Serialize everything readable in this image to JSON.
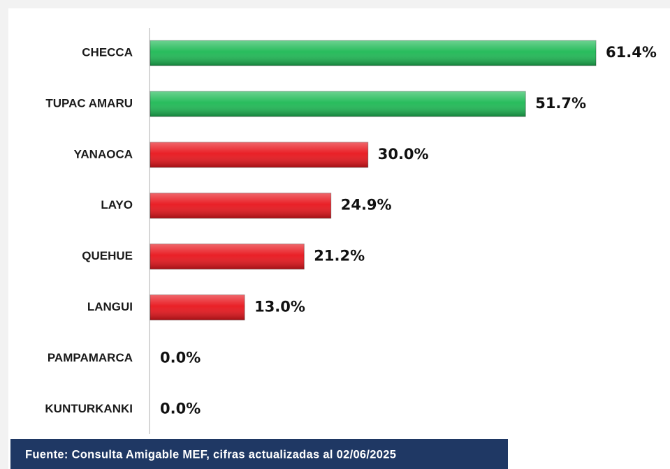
{
  "chart_data": {
    "type": "barh",
    "categories": [
      "CHECCA",
      "TUPAC AMARU",
      "YANAOCA",
      "LAYO",
      "QUEHUE",
      "LANGUI",
      "PAMPAMARCA",
      "KUNTURKANKI"
    ],
    "values": [
      61.4,
      51.7,
      30.0,
      24.9,
      21.2,
      13.0,
      0.0,
      0.0
    ],
    "value_labels": [
      "61.4%",
      "51.7%",
      "30.0%",
      "24.9%",
      "21.2%",
      "13.0%",
      "0.0%",
      "0.0%"
    ],
    "colors": [
      "#1db954",
      "#1db954",
      "#e8141b",
      "#e8141b",
      "#e8141b",
      "#e8141b",
      "#e8141b",
      "#e8141b"
    ],
    "source": "Fuente: Consulta Amigable MEF, cifras actualizadas al 02/06/2025"
  }
}
